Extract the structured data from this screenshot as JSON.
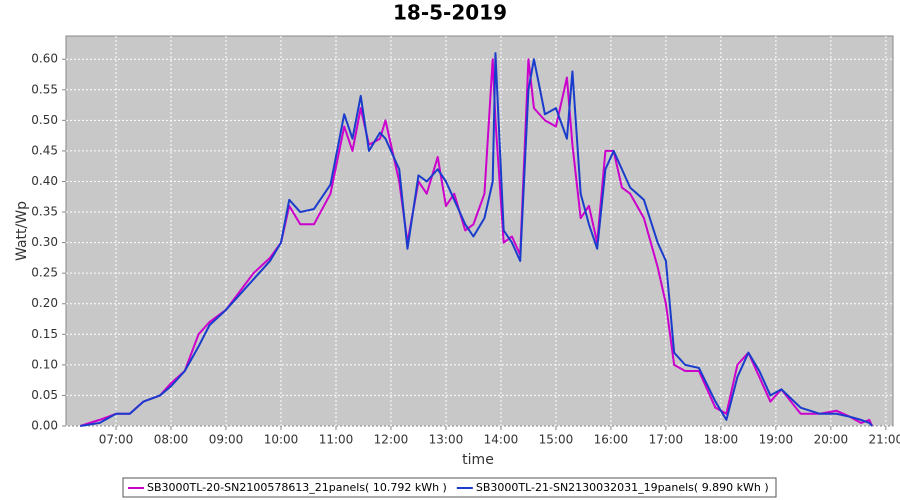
{
  "chart_data": {
    "type": "line",
    "title": "18-5-2019",
    "x_label": "time",
    "y_label": "Watt/Wp",
    "x": [
      6.35,
      6.7,
      7.0,
      7.25,
      7.5,
      7.8,
      8.0,
      8.25,
      8.5,
      8.7,
      9.0,
      9.25,
      9.5,
      9.8,
      10.0,
      10.15,
      10.35,
      10.6,
      10.9,
      11.15,
      11.3,
      11.45,
      11.6,
      11.8,
      11.9,
      12.15,
      12.3,
      12.5,
      12.65,
      12.85,
      13.0,
      13.15,
      13.35,
      13.5,
      13.7,
      13.85,
      13.9,
      14.05,
      14.2,
      14.35,
      14.5,
      14.6,
      14.8,
      15.0,
      15.2,
      15.3,
      15.45,
      15.6,
      15.75,
      15.9,
      16.05,
      16.2,
      16.35,
      16.6,
      16.85,
      17.0,
      17.15,
      17.35,
      17.6,
      17.9,
      18.1,
      18.3,
      18.5,
      18.7,
      18.9,
      19.1,
      19.45,
      19.8,
      20.1,
      20.35,
      20.55,
      20.7,
      20.75
    ],
    "series": [
      {
        "name": "SB3000TL-20-SN2100578613_21panels( 10.792 kWh )",
        "color": "#cc00cc",
        "values": [
          0,
          0.01,
          0.02,
          0.02,
          0.04,
          0.05,
          0.07,
          0.09,
          0.15,
          0.17,
          0.19,
          0.22,
          0.25,
          0.275,
          0.3,
          0.36,
          0.33,
          0.33,
          0.38,
          0.49,
          0.45,
          0.52,
          0.46,
          0.47,
          0.5,
          0.4,
          0.3,
          0.4,
          0.38,
          0.44,
          0.36,
          0.38,
          0.32,
          0.33,
          0.38,
          0.6,
          0.5,
          0.3,
          0.31,
          0.28,
          0.6,
          0.52,
          0.5,
          0.49,
          0.57,
          0.46,
          0.34,
          0.36,
          0.3,
          0.45,
          0.45,
          0.39,
          0.38,
          0.34,
          0.26,
          0.2,
          0.1,
          0.09,
          0.09,
          0.03,
          0.02,
          0.1,
          0.12,
          0.08,
          0.04,
          0.06,
          0.02,
          0.02,
          0.025,
          0.015,
          0.005,
          0.01,
          0
        ]
      },
      {
        "name": "SB3000TL-21-SN2130032031_19panels( 9.890 kWh )",
        "color": "#1a3ccc",
        "values": [
          0,
          0.005,
          0.02,
          0.02,
          0.04,
          0.05,
          0.065,
          0.09,
          0.13,
          0.165,
          0.19,
          0.215,
          0.24,
          0.27,
          0.3,
          0.37,
          0.35,
          0.355,
          0.395,
          0.51,
          0.47,
          0.54,
          0.45,
          0.48,
          0.47,
          0.42,
          0.29,
          0.41,
          0.4,
          0.42,
          0.4,
          0.37,
          0.33,
          0.31,
          0.34,
          0.4,
          0.61,
          0.32,
          0.3,
          0.27,
          0.55,
          0.6,
          0.51,
          0.52,
          0.47,
          0.58,
          0.38,
          0.33,
          0.29,
          0.42,
          0.45,
          0.42,
          0.39,
          0.37,
          0.3,
          0.27,
          0.12,
          0.1,
          0.095,
          0.04,
          0.01,
          0.08,
          0.12,
          0.09,
          0.05,
          0.06,
          0.03,
          0.02,
          0.02,
          0.015,
          0.01,
          0.005,
          0
        ]
      }
    ],
    "xlim": [
      6.09,
      21.13
    ],
    "ylim": [
      0,
      0.638
    ],
    "xticks": [
      {
        "value": 7,
        "label": "07:00"
      },
      {
        "value": 8,
        "label": "08:00"
      },
      {
        "value": 9,
        "label": "09:00"
      },
      {
        "value": 10,
        "label": "10:00"
      },
      {
        "value": 11,
        "label": "11:00"
      },
      {
        "value": 12,
        "label": "12:00"
      },
      {
        "value": 13,
        "label": "13:00"
      },
      {
        "value": 14,
        "label": "14:00"
      },
      {
        "value": 15,
        "label": "15:00"
      },
      {
        "value": 16,
        "label": "16:00"
      },
      {
        "value": 17,
        "label": "17:00"
      },
      {
        "value": 18,
        "label": "18:00"
      },
      {
        "value": 19,
        "label": "19:00"
      },
      {
        "value": 20,
        "label": "20:00"
      },
      {
        "value": 21,
        "label": "21:00"
      }
    ],
    "yticks": [
      {
        "value": 0,
        "label": "0.00"
      },
      {
        "value": 0.05,
        "label": "0.05"
      },
      {
        "value": 0.1,
        "label": "0.10"
      },
      {
        "value": 0.15,
        "label": "0.15"
      },
      {
        "value": 0.2,
        "label": "0.20"
      },
      {
        "value": 0.25,
        "label": "0.25"
      },
      {
        "value": 0.3,
        "label": "0.30"
      },
      {
        "value": 0.35,
        "label": "0.35"
      },
      {
        "value": 0.4,
        "label": "0.40"
      },
      {
        "value": 0.45,
        "label": "0.45"
      },
      {
        "value": 0.5,
        "label": "0.50"
      },
      {
        "value": 0.55,
        "label": "0.55"
      },
      {
        "value": 0.6,
        "label": "0.60"
      }
    ],
    "grid": true,
    "legend": "bottom"
  }
}
